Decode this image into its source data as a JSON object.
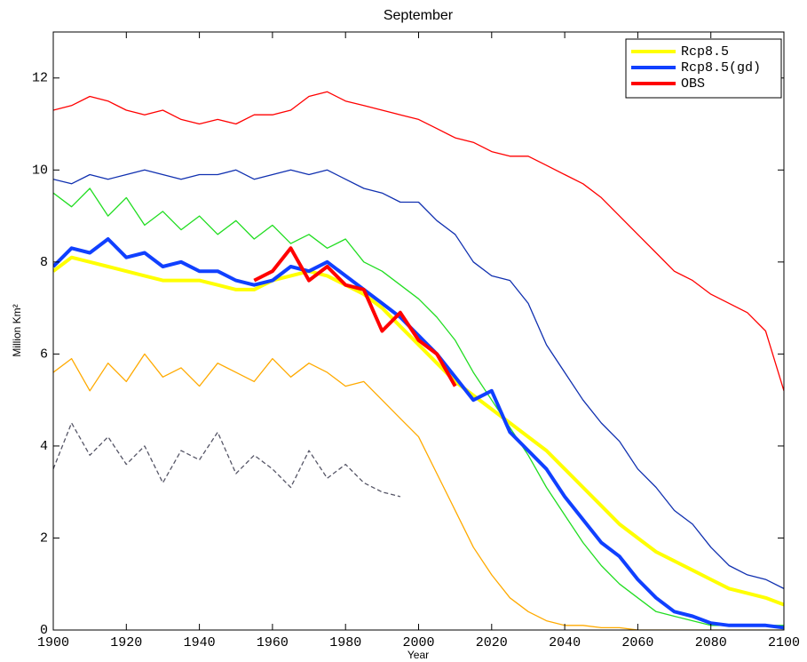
{
  "chart_data": {
    "type": "line",
    "title": "September",
    "xlabel": "Year",
    "ylabel": "Million Km²",
    "x": [
      1900,
      1905,
      1910,
      1915,
      1920,
      1925,
      1930,
      1935,
      1940,
      1945,
      1950,
      1955,
      1960,
      1965,
      1970,
      1975,
      1980,
      1985,
      1990,
      1995,
      2000,
      2005,
      2010,
      2015,
      2020,
      2025,
      2030,
      2035,
      2040,
      2045,
      2050,
      2055,
      2060,
      2065,
      2070,
      2075,
      2080,
      2085,
      2090,
      2095,
      2100
    ],
    "xlim": [
      1900,
      2100
    ],
    "xticks": [
      1900,
      1920,
      1940,
      1960,
      1980,
      2000,
      2020,
      2040,
      2060,
      2080,
      2100
    ],
    "ylim": [
      0,
      13
    ],
    "yticks": [
      0,
      2,
      4,
      6,
      8,
      10,
      12
    ],
    "legend": "upper right",
    "background_series": [
      {
        "color": "#ff0000",
        "values": [
          11.3,
          11.4,
          11.6,
          11.5,
          11.3,
          11.2,
          11.3,
          11.1,
          11.0,
          11.1,
          11.0,
          11.2,
          11.2,
          11.3,
          11.6,
          11.7,
          11.5,
          11.4,
          11.3,
          11.2,
          11.1,
          10.9,
          10.7,
          10.6,
          10.4,
          10.3,
          10.3,
          10.1,
          9.9,
          9.7,
          9.4,
          9.0,
          8.6,
          8.2,
          7.8,
          7.6,
          7.3,
          7.1,
          6.9,
          6.5,
          5.2
        ]
      },
      {
        "color": "#1030b0",
        "values": [
          9.8,
          9.7,
          9.9,
          9.8,
          9.9,
          10.0,
          9.9,
          9.8,
          9.9,
          9.9,
          10.0,
          9.8,
          9.9,
          10.0,
          9.9,
          10.0,
          9.8,
          9.6,
          9.5,
          9.3,
          9.3,
          8.9,
          8.6,
          8.0,
          7.7,
          7.6,
          7.1,
          6.2,
          5.6,
          5.0,
          4.5,
          4.1,
          3.5,
          3.1,
          2.6,
          2.3,
          1.8,
          1.4,
          1.2,
          1.1,
          0.9
        ]
      },
      {
        "color": "#22dd22",
        "values": [
          9.5,
          9.2,
          9.6,
          9.0,
          9.4,
          8.8,
          9.1,
          8.7,
          9.0,
          8.6,
          8.9,
          8.5,
          8.8,
          8.4,
          8.6,
          8.3,
          8.5,
          8.0,
          7.8,
          7.5,
          7.2,
          6.8,
          6.3,
          5.6,
          5.0,
          4.4,
          3.8,
          3.1,
          2.5,
          1.9,
          1.4,
          1.0,
          0.7,
          0.4,
          0.3,
          0.2,
          0.1,
          0.1,
          0.1,
          0.1,
          0.1
        ]
      },
      {
        "color": "#ffaa00",
        "values": [
          5.6,
          5.9,
          5.2,
          5.8,
          5.4,
          6.0,
          5.5,
          5.7,
          5.3,
          5.8,
          5.6,
          5.4,
          5.9,
          5.5,
          5.8,
          5.6,
          5.3,
          5.4,
          5.0,
          4.6,
          4.2,
          3.4,
          2.6,
          1.8,
          1.2,
          0.7,
          0.4,
          0.2,
          0.1,
          0.1,
          0.05,
          0.05,
          0,
          0,
          0,
          0,
          0,
          0,
          0,
          0,
          0
        ]
      },
      {
        "color": "#555566",
        "dashed": true,
        "values": [
          3.5,
          4.5,
          3.8,
          4.2,
          3.6,
          4.0,
          3.2,
          3.9,
          3.7,
          4.3,
          3.4,
          3.8,
          3.5,
          3.1,
          3.9,
          3.3,
          3.6,
          3.2,
          3.0,
          2.9,
          null,
          null,
          null,
          null,
          null,
          null,
          null,
          null,
          null,
          null,
          null,
          null,
          null,
          null,
          null,
          null,
          null,
          null,
          null,
          null,
          null
        ]
      }
    ],
    "series": [
      {
        "name": "Rcp8.5",
        "color": "#ffff00",
        "values": [
          7.8,
          8.1,
          8.0,
          7.9,
          7.8,
          7.7,
          7.6,
          7.6,
          7.6,
          7.5,
          7.4,
          7.4,
          7.6,
          7.7,
          7.8,
          7.7,
          7.5,
          7.3,
          7.0,
          6.6,
          6.2,
          5.8,
          5.4,
          5.1,
          4.8,
          4.5,
          4.2,
          3.9,
          3.5,
          3.1,
          2.7,
          2.3,
          2.0,
          1.7,
          1.5,
          1.3,
          1.1,
          0.9,
          0.8,
          0.7,
          0.55
        ]
      },
      {
        "name": "Rcp8.5(gd)",
        "color": "#1040ff",
        "values": [
          7.9,
          8.3,
          8.2,
          8.5,
          8.1,
          8.2,
          7.9,
          8.0,
          7.8,
          7.8,
          7.6,
          7.5,
          7.6,
          7.9,
          7.8,
          8.0,
          7.7,
          7.4,
          7.1,
          6.8,
          6.4,
          6.0,
          5.5,
          5.0,
          5.2,
          4.3,
          3.9,
          3.5,
          2.9,
          2.4,
          1.9,
          1.6,
          1.1,
          0.7,
          0.4,
          0.3,
          0.15,
          0.1,
          0.1,
          0.1,
          0.05
        ]
      },
      {
        "name": "OBS",
        "color": "#ff0000",
        "values": [
          null,
          null,
          null,
          null,
          null,
          null,
          null,
          null,
          null,
          null,
          null,
          7.6,
          7.8,
          8.3,
          7.6,
          7.9,
          7.5,
          7.4,
          6.5,
          6.9,
          6.3,
          6.0,
          5.3,
          null,
          null,
          null,
          null,
          null,
          null,
          null,
          null,
          null,
          null,
          null,
          null,
          null,
          null,
          null,
          null,
          null,
          null
        ]
      }
    ]
  }
}
